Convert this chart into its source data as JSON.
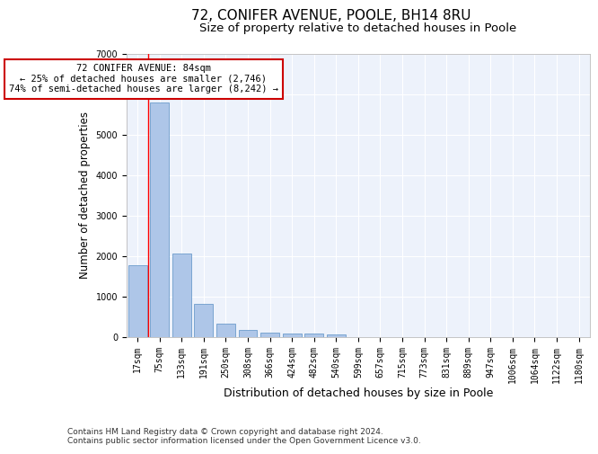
{
  "title1": "72, CONIFER AVENUE, POOLE, BH14 8RU",
  "title2": "Size of property relative to detached houses in Poole",
  "xlabel": "Distribution of detached houses by size in Poole",
  "ylabel": "Number of detached properties",
  "bar_labels": [
    "17sqm",
    "75sqm",
    "133sqm",
    "191sqm",
    "250sqm",
    "308sqm",
    "366sqm",
    "424sqm",
    "482sqm",
    "540sqm",
    "599sqm",
    "657sqm",
    "715sqm",
    "773sqm",
    "831sqm",
    "889sqm",
    "947sqm",
    "1006sqm",
    "1064sqm",
    "1122sqm",
    "1180sqm"
  ],
  "bar_values": [
    1780,
    5800,
    2060,
    820,
    340,
    185,
    115,
    100,
    90,
    70,
    0,
    0,
    0,
    0,
    0,
    0,
    0,
    0,
    0,
    0,
    0
  ],
  "bar_color": "#aec6e8",
  "bar_edge_color": "#5a8fc4",
  "red_line_x": 0.5,
  "annotation_title": "72 CONIFER AVENUE: 84sqm",
  "annotation_line1": "← 25% of detached houses are smaller (2,746)",
  "annotation_line2": "74% of semi-detached houses are larger (8,242) →",
  "annotation_box_color": "#ffffff",
  "annotation_box_edge": "#cc0000",
  "ylim": [
    0,
    7000
  ],
  "yticks": [
    0,
    1000,
    2000,
    3000,
    4000,
    5000,
    6000,
    7000
  ],
  "footnote1": "Contains HM Land Registry data © Crown copyright and database right 2024.",
  "footnote2": "Contains public sector information licensed under the Open Government Licence v3.0.",
  "background_color": "#edf2fb",
  "grid_color": "#ffffff",
  "title1_fontsize": 11,
  "title2_fontsize": 9.5,
  "xlabel_fontsize": 9,
  "ylabel_fontsize": 8.5,
  "tick_fontsize": 7,
  "footnote_fontsize": 6.5,
  "annotation_fontsize": 7.5
}
